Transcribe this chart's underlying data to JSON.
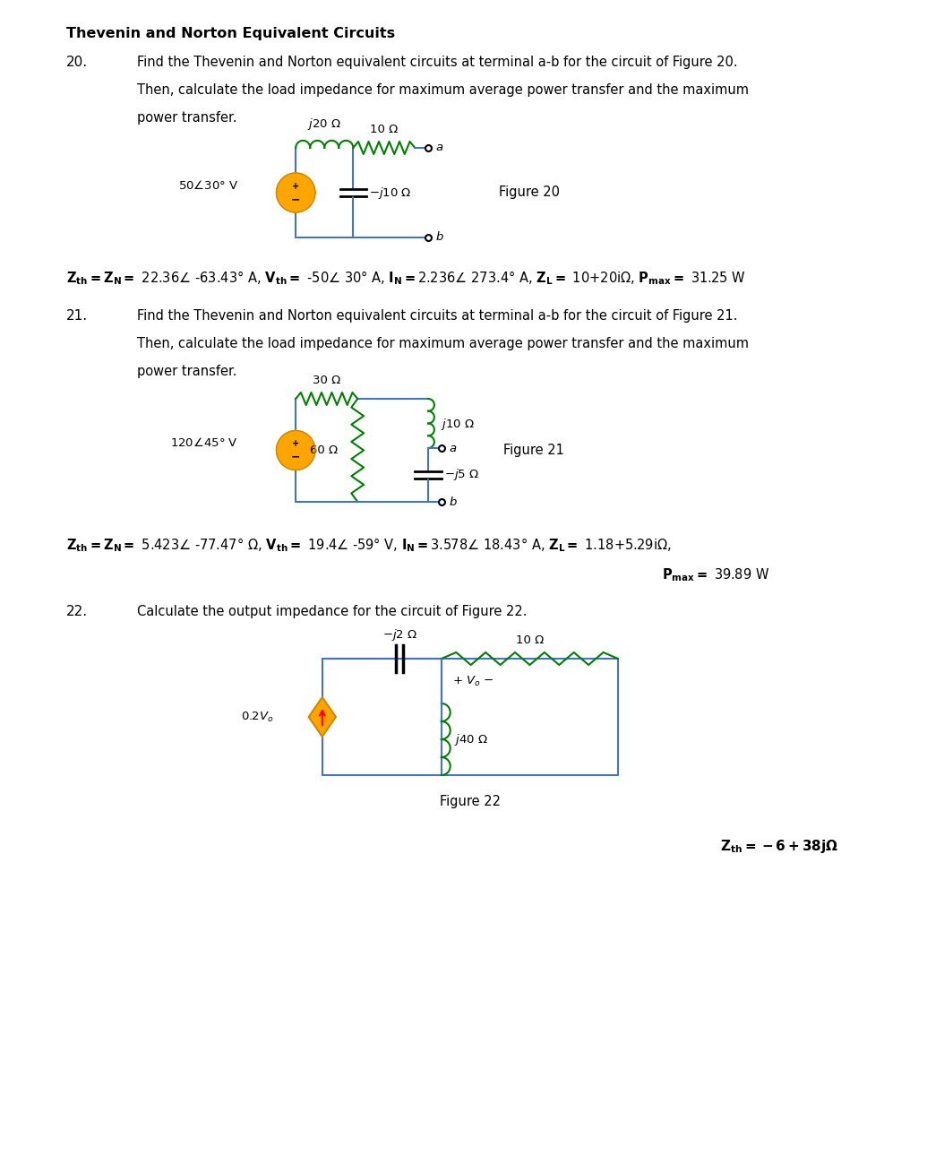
{
  "title": "Thevenin and Norton Equivalent Circuits",
  "bg_color": "#ffffff",
  "text_color": "#000000",
  "circuit_color": "#000000",
  "inductor_color": "#008000",
  "resistor_color": "#008000",
  "source_color": "#FFA500",
  "wire_color": "#4472C4",
  "q20_number": "20.",
  "q20_text_line1": "Find the Thevenin and Norton equivalent circuits at terminal a-b for the circuit of Figure 20.",
  "q20_text_line2": "Then, calculate the load impedance for maximum average power transfer and the maximum",
  "q20_text_line3": "power transfer.",
  "q20_fig_label": "Figure 20",
  "q20_answer": "Zₐₕ=Zₙ= 22.36∠ -63.43° A, Vₐₕ= -50∠ 30° A, Iₙ=2.236∠ 273.4° A, Zₗ= 10+20iΩ, Pₘₐₓ= 31.25 W",
  "q21_number": "21.",
  "q21_text_line1": "Find the Thevenin and Norton equivalent circuits at terminal a-b for the circuit of Figure 21.",
  "q21_text_line2": "Then, calculate the load impedance for maximum average power transfer and the maximum",
  "q21_text_line3": "power transfer.",
  "q21_fig_label": "Figure 21",
  "q21_answer_line1": "Zₐₕ=Zₙ= 5.423∠ -77.47° Ω, Vₐₕ= 19.4∠ -59° V, Iₙ=3.578∠ 18.43° A, Zₗ= 1.18+5.29iΩ,",
  "q21_answer_line2": "Pₘₐₓ= 39.89 W",
  "q22_number": "22.",
  "q22_text": "Calculate the output impedance for the circuit of Figure 22.",
  "q22_fig_label": "Figure 22",
  "q22_answer": "Zₐₕ=-6+38jΩ"
}
